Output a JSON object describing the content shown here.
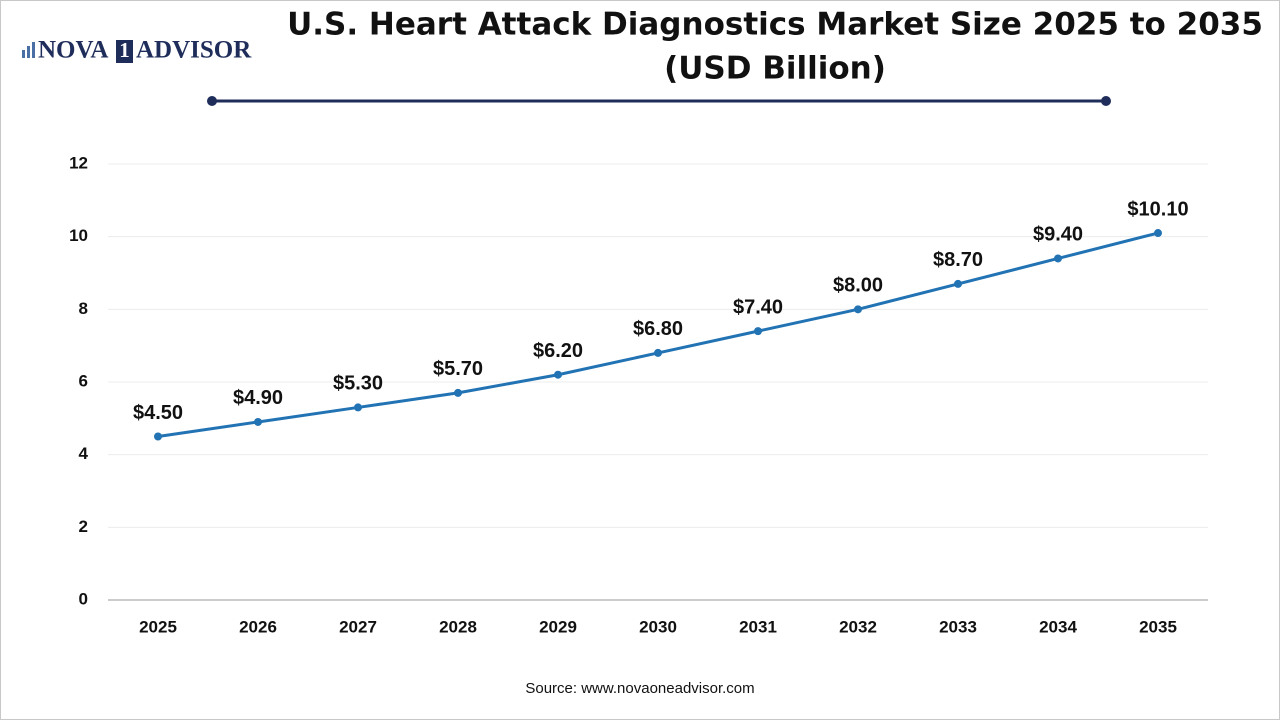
{
  "logo": {
    "parts": [
      "NOVA",
      "1",
      "ADVISOR"
    ]
  },
  "source": "Source: www.novaoneadvisor.com",
  "chart_data": {
    "type": "line",
    "title": [
      "U.S. Heart Attack Diagnostics Market Size 2025 to 2035",
      "(USD Billion)"
    ],
    "categories": [
      "2025",
      "2026",
      "2027",
      "2028",
      "2029",
      "2030",
      "2031",
      "2032",
      "2033",
      "2034",
      "2035"
    ],
    "values": [
      4.5,
      4.9,
      5.3,
      5.7,
      6.2,
      6.8,
      7.4,
      8.0,
      8.7,
      9.4,
      10.1
    ],
    "value_labels": [
      "$4.50",
      "$4.90",
      "$5.30",
      "$5.70",
      "$6.20",
      "$6.80",
      "$7.40",
      "$8.00",
      "$8.70",
      "$9.40",
      "$10.10"
    ],
    "color": "#2273b4",
    "ylim": [
      0,
      12
    ],
    "yticks": [
      0,
      2,
      4,
      6,
      8,
      10,
      12
    ],
    "grid": true
  }
}
